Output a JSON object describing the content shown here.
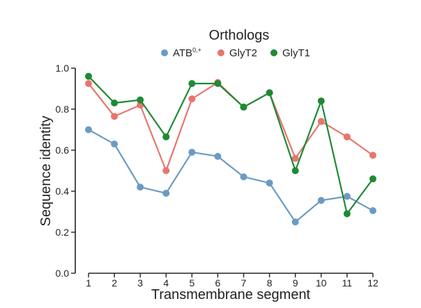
{
  "chart_data": {
    "type": "line",
    "title": "",
    "legend_title": "Orthologs",
    "legend_position": "top-center",
    "xlabel": "Transmembrane segment",
    "ylabel": "Sequence identity",
    "x": [
      1,
      2,
      3,
      4,
      5,
      6,
      7,
      8,
      9,
      10,
      11,
      12
    ],
    "x_tick_labels": [
      "1",
      "2",
      "3",
      "4",
      "5",
      "6",
      "7",
      "8",
      "9",
      "10",
      "11",
      "12"
    ],
    "ylim": [
      0.0,
      1.0
    ],
    "y_ticks": [
      0.0,
      0.2,
      0.4,
      0.6,
      0.8,
      1.0
    ],
    "y_tick_labels": [
      "0.0",
      "0.2",
      "0.4",
      "0.6",
      "0.8",
      "1.0"
    ],
    "grid": false,
    "series": [
      {
        "name": "ATB",
        "name_superscript": "0,+",
        "color": "#6b9bc3",
        "values": [
          0.7,
          0.63,
          0.42,
          0.39,
          0.59,
          0.57,
          0.47,
          0.44,
          0.25,
          0.355,
          0.375,
          0.305
        ]
      },
      {
        "name": "GlyT2",
        "name_superscript": "",
        "color": "#e8756f",
        "values": [
          0.925,
          0.765,
          0.82,
          0.5,
          0.85,
          0.93,
          0.81,
          0.88,
          0.56,
          0.74,
          0.665,
          0.575
        ]
      },
      {
        "name": "GlyT1",
        "name_superscript": "",
        "color": "#1e8a34",
        "values": [
          0.96,
          0.83,
          0.845,
          0.665,
          0.925,
          0.925,
          0.81,
          0.88,
          0.5,
          0.84,
          0.29,
          0.46
        ]
      }
    ]
  }
}
